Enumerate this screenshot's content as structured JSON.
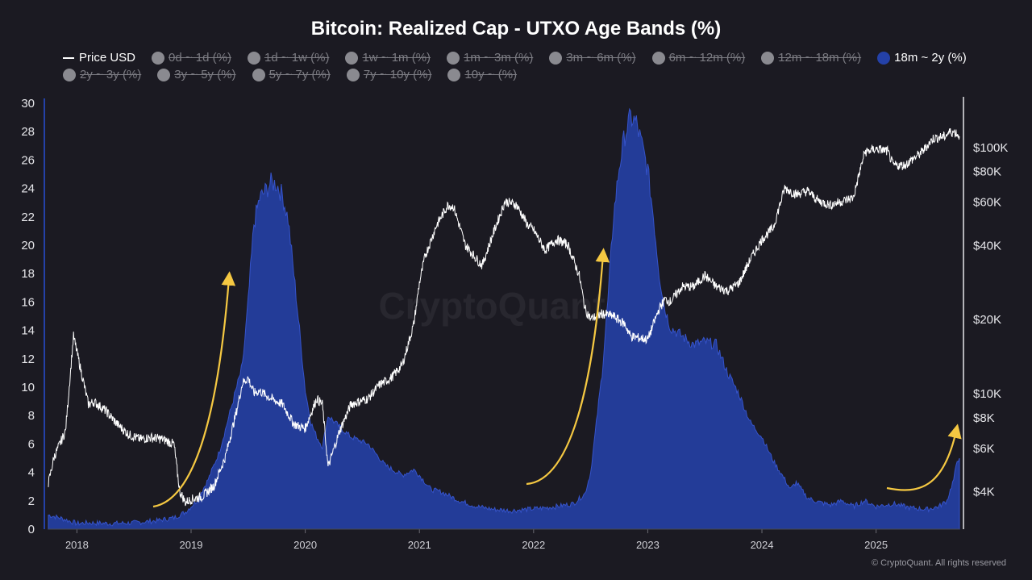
{
  "chart_data": {
    "type": "area",
    "title": "Bitcoin: Realized Cap - UTXO Age Bands (%)",
    "legend": [
      {
        "label": "Price USD",
        "kind": "line",
        "active": true
      },
      {
        "label": "0d ~ 1d (%)",
        "active": false
      },
      {
        "label": "1d ~ 1w (%)",
        "active": false
      },
      {
        "label": "1w ~ 1m (%)",
        "active": false
      },
      {
        "label": "1m ~ 3m (%)",
        "active": false
      },
      {
        "label": "3m ~ 6m (%)",
        "active": false
      },
      {
        "label": "6m ~ 12m (%)",
        "active": false
      },
      {
        "label": "12m ~ 18m (%)",
        "active": false
      },
      {
        "label": "18m ~ 2y (%)",
        "active": true
      },
      {
        "label": "2y ~ 3y (%)",
        "active": false
      },
      {
        "label": "3y ~ 5y (%)",
        "active": false
      },
      {
        "label": "5y ~ 7y (%)",
        "active": false
      },
      {
        "label": "7y ~ 10y (%)",
        "active": false
      },
      {
        "label": "10y ~ (%)",
        "active": false
      }
    ],
    "legend_placement": "top",
    "watermark": "CryptoQuant",
    "x_ticks": [
      "2018",
      "2019",
      "2020",
      "2021",
      "2022",
      "2023",
      "2024",
      "2025"
    ],
    "x_range": [
      2017.75,
      2025.73
    ],
    "y_left": {
      "ticks": [
        "0",
        "2",
        "4",
        "6",
        "8",
        "10",
        "12",
        "14",
        "16",
        "18",
        "20",
        "22",
        "24",
        "26",
        "28",
        "30"
      ],
      "range": [
        0,
        30
      ]
    },
    "y_right": {
      "ticks": [
        "$4K",
        "$6K",
        "$8K",
        "$10K",
        "$20K",
        "$40K",
        "$60K",
        "$80K",
        "$100K"
      ],
      "values": [
        4000,
        6000,
        8000,
        10000,
        20000,
        40000,
        60000,
        80000,
        100000
      ],
      "scale": "log",
      "range": [
        2800,
        150000
      ]
    },
    "series": [
      {
        "name": "18m ~ 2y (%)",
        "color": "#2441a8",
        "axis": "left",
        "x": [
          2017.75,
          2017.85,
          2018.0,
          2018.1,
          2018.3,
          2018.5,
          2018.7,
          2018.85,
          2018.95,
          2019.05,
          2019.15,
          2019.25,
          2019.35,
          2019.45,
          2019.5,
          2019.55,
          2019.6,
          2019.65,
          2019.7,
          2019.75,
          2019.8,
          2019.85,
          2019.9,
          2019.95,
          2020.0,
          2020.05,
          2020.1,
          2020.15,
          2020.2,
          2020.3,
          2020.4,
          2020.55,
          2020.7,
          2020.85,
          2020.95,
          2021.0,
          2021.1,
          2021.2,
          2021.35,
          2021.5,
          2021.65,
          2021.8,
          2021.95,
          2022.1,
          2022.2,
          2022.35,
          2022.45,
          2022.5,
          2022.55,
          2022.6,
          2022.65,
          2022.7,
          2022.75,
          2022.8,
          2022.85,
          2022.9,
          2022.95,
          2023.0,
          2023.05,
          2023.1,
          2023.15,
          2023.2,
          2023.3,
          2023.4,
          2023.5,
          2023.6,
          2023.7,
          2023.8,
          2023.9,
          2024.0,
          2024.1,
          2024.2,
          2024.25,
          2024.3,
          2024.4,
          2024.5,
          2024.6,
          2024.7,
          2024.8,
          2024.9,
          2025.0,
          2025.15,
          2025.3,
          2025.45,
          2025.55,
          2025.62,
          2025.68,
          2025.71,
          2025.73
        ],
        "values": [
          1.0,
          0.8,
          0.4,
          0.45,
          0.4,
          0.45,
          0.6,
          0.8,
          1.2,
          2.0,
          3.5,
          5.5,
          8.5,
          11.5,
          16.0,
          21.5,
          23.3,
          23.8,
          24.4,
          24.3,
          23.5,
          21.8,
          18.0,
          14.0,
          9.8,
          7.5,
          6.5,
          5.8,
          8.0,
          7.2,
          6.5,
          6.0,
          4.5,
          3.8,
          4.2,
          3.8,
          2.8,
          2.6,
          2.0,
          1.6,
          1.4,
          1.3,
          1.4,
          1.5,
          1.6,
          1.8,
          2.5,
          4.0,
          7.5,
          11.0,
          16.0,
          22.0,
          25.5,
          27.8,
          29.0,
          28.6,
          27.0,
          25.3,
          22.0,
          18.0,
          15.5,
          14.2,
          13.6,
          13.0,
          13.2,
          13.0,
          11.0,
          9.5,
          7.5,
          6.5,
          4.8,
          3.5,
          2.8,
          3.3,
          2.2,
          1.9,
          1.7,
          2.0,
          1.6,
          2.0,
          1.6,
          1.8,
          1.5,
          1.4,
          1.6,
          2.0,
          3.5,
          4.8,
          5.0
        ]
      },
      {
        "name": "Price USD",
        "color": "#ffffff",
        "axis": "right",
        "x": [
          2017.75,
          2017.8,
          2017.9,
          2017.97,
          2018.05,
          2018.1,
          2018.15,
          2018.25,
          2018.35,
          2018.45,
          2018.55,
          2018.65,
          2018.75,
          2018.85,
          2018.9,
          2018.95,
          2019.0,
          2019.1,
          2019.2,
          2019.3,
          2019.4,
          2019.45,
          2019.5,
          2019.55,
          2019.6,
          2019.7,
          2019.8,
          2019.9,
          2019.95,
          2020.0,
          2020.1,
          2020.15,
          2020.2,
          2020.3,
          2020.4,
          2020.55,
          2020.65,
          2020.75,
          2020.85,
          2020.95,
          2021.0,
          2021.05,
          2021.15,
          2021.25,
          2021.3,
          2021.4,
          2021.5,
          2021.55,
          2021.65,
          2021.75,
          2021.85,
          2021.95,
          2022.0,
          2022.1,
          2022.2,
          2022.3,
          2022.4,
          2022.45,
          2022.5,
          2022.6,
          2022.7,
          2022.8,
          2022.85,
          2022.9,
          2023.0,
          2023.1,
          2023.15,
          2023.2,
          2023.3,
          2023.4,
          2023.5,
          2023.6,
          2023.7,
          2023.8,
          2023.9,
          2024.0,
          2024.1,
          2024.2,
          2024.3,
          2024.4,
          2024.5,
          2024.6,
          2024.7,
          2024.8,
          2024.9,
          2025.0,
          2025.1,
          2025.15,
          2025.25,
          2025.4,
          2025.5,
          2025.6,
          2025.65,
          2025.7,
          2025.73
        ],
        "values": [
          4300,
          5500,
          7000,
          17000,
          11500,
          9000,
          9200,
          8500,
          7500,
          6800,
          6500,
          6600,
          6500,
          6200,
          4000,
          3600,
          3700,
          3800,
          4200,
          5500,
          8500,
          11000,
          11500,
          10000,
          10200,
          9500,
          9000,
          7500,
          7300,
          7200,
          9500,
          9000,
          5000,
          7000,
          9000,
          9500,
          10800,
          11500,
          13000,
          19000,
          28000,
          36000,
          48000,
          58000,
          57000,
          40000,
          35000,
          33000,
          45000,
          60000,
          58000,
          48000,
          46000,
          38000,
          42000,
          40000,
          30000,
          22000,
          20000,
          21000,
          20500,
          19000,
          17000,
          16800,
          16500,
          22000,
          24000,
          23500,
          27000,
          27000,
          30000,
          27000,
          26000,
          28000,
          35000,
          42000,
          47000,
          68000,
          64000,
          66000,
          60000,
          58000,
          60000,
          62000,
          95000,
          98000,
          96000,
          84000,
          84000,
          95000,
          108000,
          110000,
          115000,
          114000,
          110000
        ]
      }
    ],
    "annotations": [
      "yellow arrow rising 2018-2019",
      "yellow arrow rising 2022",
      "yellow arrow rising 2025"
    ]
  },
  "footer": {
    "copyright": "© CryptoQuant. All rights reserved"
  }
}
